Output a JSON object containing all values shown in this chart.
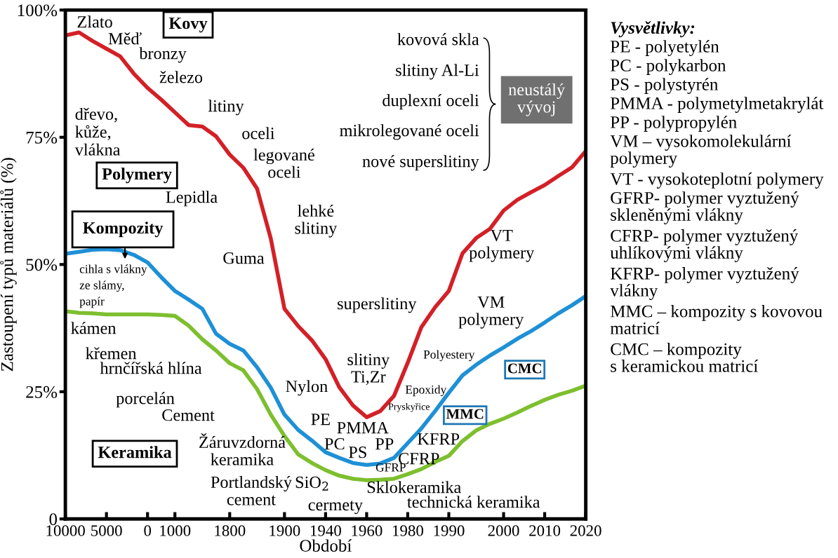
{
  "chart_data": {
    "type": "line",
    "xlabel": "Období",
    "ylabel": "Zastoupení typů materiálů (%)",
    "categories": [
      "10000",
      null,
      null,
      "5000",
      null,
      null,
      "0",
      null,
      "1000",
      null,
      null,
      null,
      "1800",
      null,
      null,
      null,
      "1900",
      null,
      null,
      "1940",
      null,
      null,
      "1960",
      null,
      null,
      "1980",
      null,
      null,
      "1990",
      null,
      null,
      null,
      "2000",
      null,
      null,
      "2010",
      null,
      null,
      "2020"
    ],
    "ylim": [
      0,
      100
    ],
    "yticks": [
      0,
      {
        "value": 25,
        "label": "25%"
      },
      {
        "value": 50,
        "label": "50%"
      },
      {
        "value": 75,
        "label": "75%"
      },
      {
        "value": 100,
        "label": "100%"
      }
    ],
    "series": [
      {
        "color": "#d32027",
        "values": [
          95.0,
          95.6,
          93.9,
          92.4,
          90.9,
          87.5,
          84.7,
          82.4,
          79.9,
          77.4,
          77.1,
          75.2,
          71.6,
          69.0,
          64.9,
          55.1,
          41.3,
          37.9,
          35.1,
          31.4,
          25.9,
          22.3,
          20.0,
          21.2,
          24.2,
          30.7,
          37.7,
          41.6,
          44.8,
          52.2,
          55.2,
          57.0,
          60.6,
          62.7,
          64.2,
          65.6,
          67.4,
          69.1,
          72.3
        ]
      },
      {
        "color": "#1e90d6",
        "values": [
          52.1,
          52.5,
          52.9,
          53.0,
          52.8,
          51.9,
          50.4,
          47.5,
          44.8,
          43.1,
          41.3,
          36.4,
          34.4,
          33.1,
          29.8,
          25.8,
          20.5,
          17.5,
          15.4,
          13.1,
          12.0,
          11.0,
          10.6,
          10.9,
          12.0,
          14.9,
          17.8,
          21.2,
          24.8,
          28.2,
          30.3,
          32.1,
          33.7,
          35.4,
          36.9,
          38.6,
          40.4,
          42.0,
          43.8
        ]
      },
      {
        "color": "#7dbf2e",
        "values": [
          40.8,
          40.5,
          40.4,
          40.2,
          40.2,
          40.2,
          40.2,
          40.1,
          39.9,
          38.0,
          35.3,
          33.1,
          30.6,
          29.2,
          25.5,
          20.5,
          16.3,
          12.7,
          11.0,
          9.6,
          8.5,
          7.9,
          7.6,
          7.7,
          7.9,
          8.8,
          9.8,
          11.2,
          12.4,
          15.3,
          17.4,
          18.7,
          19.7,
          20.9,
          22.2,
          23.4,
          24.4,
          25.2,
          26.2
        ]
      }
    ],
    "annotations": [
      "Zlato",
      "Kovy",
      "Měď",
      "bronzy",
      "železo",
      "litiny",
      "oceli",
      "legované\noceli",
      "lehké\nslitiny",
      "Guma",
      "Lepidla",
      "dřevo,\nkůže,\nvlákna",
      "Polymery",
      "Kompozity",
      "cihla s vlákny\nze slámy,\npapír",
      "kámen",
      "křemen",
      "hrnčířská hlína",
      "porcelán",
      "Cement",
      "Keramika",
      "Žáruvzdorná\nkeramika",
      "Portlandský\ncement",
      "SiO$_{2}$",
      "cermety",
      "Nylon",
      "PE",
      "PMMA",
      "PC",
      "PS",
      "PP",
      "GFRP",
      "CFRP",
      "KFRP",
      "Sklokeramika",
      "technická keramika",
      "superslitiny",
      "slitiny\nTi,Zr",
      "Polyestery",
      "Epoxidy",
      "Pryskyřice",
      "MMC",
      "CMC",
      "VM\npolymery",
      "VT\npolymery",
      "kovová skla",
      "slitiny Al-Li",
      "duplexní oceli",
      "mikrolegované oceli",
      "nové superslitiny",
      "neustálý\nvývoj",
      "Vysvětlivky:",
      "PE - polyetylén",
      "PC - polykarbon",
      "PS - polystyrén",
      "PMMA - polymetylmetakrylát",
      "PP - polypropylén",
      "VM – vysokomolekulární\npolymery",
      "VT - vysokoteplotní polymery",
      "GFRP- polymer vyztužený\nskleněnými vlákny",
      "CFRP- polymer vyztužený\nuhlíkovými vlákny",
      "KFRP- polymer vyztužený\nvlákny",
      "MMC – kompozity s kovovou\nmatricí",
      "CMC – kompozity\ns keramickou matricí"
    ]
  }
}
